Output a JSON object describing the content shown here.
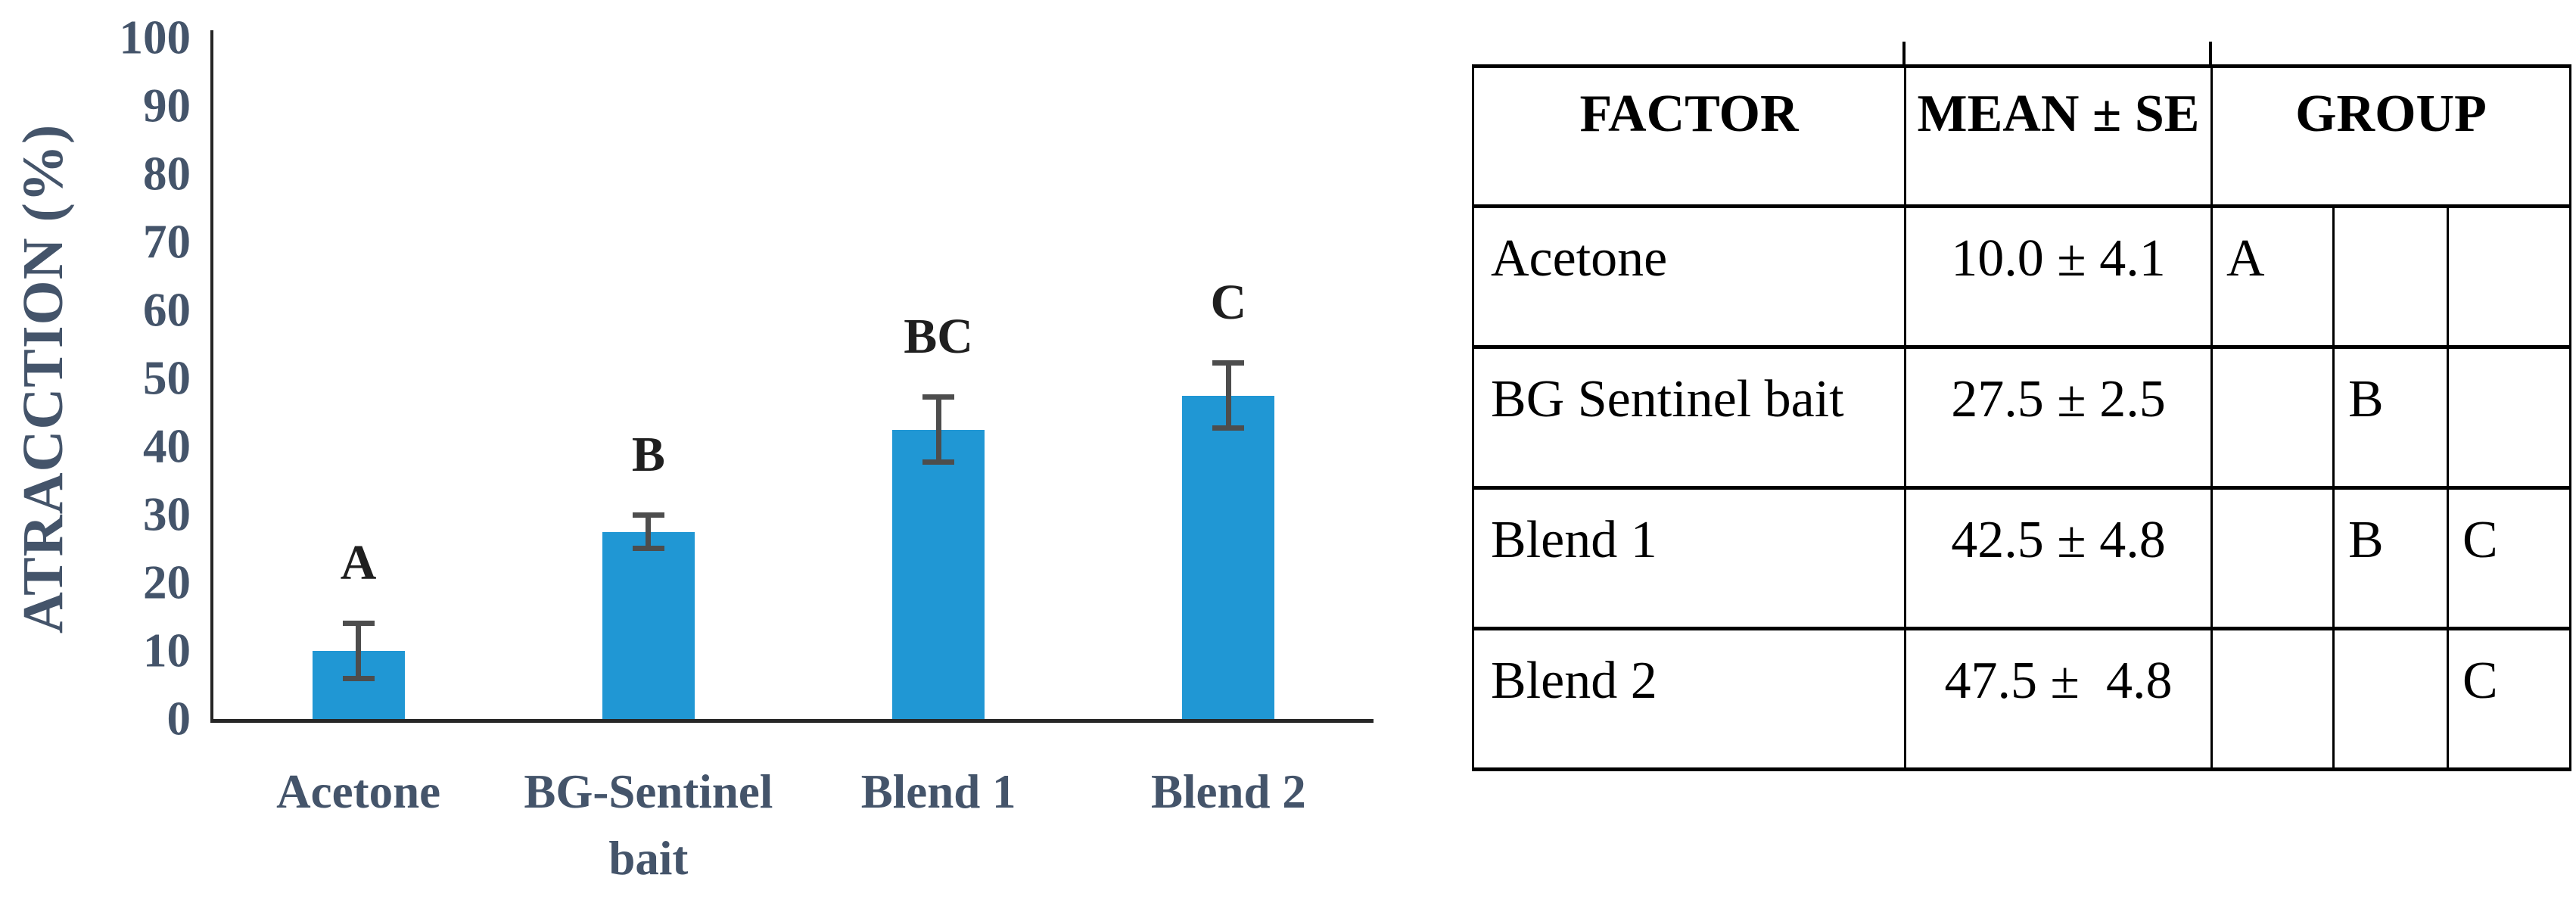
{
  "chart_data": {
    "type": "bar",
    "title": "",
    "xlabel": "",
    "ylabel": "ATRACCTION (%)",
    "ylim": [
      0,
      100
    ],
    "y_tick_step": 10,
    "y_ticks": [
      0,
      10,
      20,
      30,
      40,
      50,
      60,
      70,
      80,
      90,
      100
    ],
    "grid": false,
    "legend": "none",
    "categories": [
      "Acetone",
      "BG-Sentinel\nbait",
      "Blend 1",
      "Blend 2"
    ],
    "values": [
      10.0,
      27.5,
      42.5,
      47.5
    ],
    "errors": [
      4.1,
      2.5,
      4.8,
      4.8
    ],
    "sig_letters": [
      "A",
      "B",
      "BC",
      "C"
    ],
    "bar_color": "#2097D4",
    "error_bar_color": "#4d4d4d",
    "axis_color": "#262626",
    "tick_label_color": "#44546A",
    "sig_letter_color": "#1f1f1f"
  },
  "table": {
    "headers": [
      "FACTOR",
      "MEAN ± SE",
      "GROUP"
    ],
    "group_subcolumns": 3,
    "rows": [
      {
        "factor": "Acetone",
        "mean": "10.0 ± 4.1",
        "groups": [
          "A",
          "",
          ""
        ]
      },
      {
        "factor": "BG Sentinel bait",
        "mean": "27.5 ± 2.5",
        "groups": [
          "",
          "B",
          ""
        ]
      },
      {
        "factor": "Blend 1",
        "mean": "42.5 ± 4.8",
        "groups": [
          "",
          "B",
          "C"
        ]
      },
      {
        "factor": "Blend 2",
        "mean": "47.5 ±  4.8",
        "groups": [
          "",
          "",
          "C"
        ]
      }
    ]
  }
}
